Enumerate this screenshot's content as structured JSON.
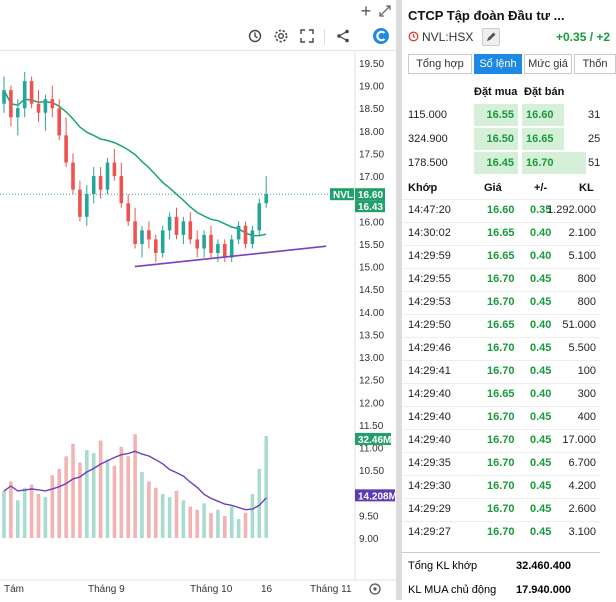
{
  "chart": {
    "price_ticks": [
      "19.50",
      "19.00",
      "18.50",
      "18.00",
      "17.50",
      "17.00",
      "16.50",
      "16.00",
      "15.50",
      "15.00",
      "14.50",
      "14.00",
      "13.50",
      "13.00",
      "12.50",
      "12.00",
      "11.50",
      "11.00",
      "10.50",
      "10.00",
      "9.50",
      "9.00"
    ],
    "x_labels": [
      "Tám",
      "Tháng 9",
      "Tháng 10",
      "16",
      "Tháng 11"
    ],
    "badges": {
      "symbol": "NVL",
      "last_price": "16.60",
      "ma_price": "16.43",
      "volume": "32.46M",
      "volume_ma": "14.208M"
    },
    "colors": {
      "up": "#26a69a",
      "down": "#ef5350",
      "ma": "#1aa37a",
      "trend": "#7b3fc4",
      "vol_ma": "#6a3fc0",
      "vol_up": "#a8dccf",
      "vol_down": "#f4b3b3",
      "badge_green": "#22a06b",
      "badge_purple": "#5c3bb5"
    }
  },
  "chart_data": {
    "type": "candlestick",
    "unit": "thousand VND",
    "x_axis_labels": [
      "Tám",
      "Tháng 9",
      "Tháng 10",
      "16",
      "Tháng 11"
    ],
    "price_range": [
      8.9,
      19.6
    ],
    "candles": [
      [
        18.6,
        19.2,
        18.4,
        18.9
      ],
      [
        18.9,
        19.0,
        18.1,
        18.3
      ],
      [
        18.3,
        18.7,
        17.9,
        18.5
      ],
      [
        18.5,
        19.3,
        18.3,
        19.1
      ],
      [
        19.1,
        19.2,
        18.5,
        18.6
      ],
      [
        18.6,
        18.9,
        18.2,
        18.4
      ],
      [
        18.4,
        18.8,
        18.0,
        18.7
      ],
      [
        18.7,
        19.0,
        18.3,
        18.5
      ],
      [
        18.5,
        18.7,
        17.8,
        17.9
      ],
      [
        17.9,
        18.3,
        17.2,
        17.3
      ],
      [
        17.3,
        17.5,
        16.6,
        16.7
      ],
      [
        16.7,
        16.9,
        16.0,
        16.1
      ],
      [
        16.1,
        16.8,
        15.9,
        16.6
      ],
      [
        16.6,
        17.2,
        16.4,
        17.0
      ],
      [
        17.0,
        17.2,
        16.5,
        16.7
      ],
      [
        16.7,
        17.4,
        16.6,
        17.3
      ],
      [
        17.3,
        17.6,
        16.9,
        17.0
      ],
      [
        17.0,
        17.3,
        16.3,
        16.4
      ],
      [
        16.4,
        16.6,
        15.9,
        16.0
      ],
      [
        16.0,
        16.3,
        15.4,
        15.5
      ],
      [
        15.5,
        15.9,
        15.2,
        15.8
      ],
      [
        15.8,
        16.0,
        15.4,
        15.6
      ],
      [
        15.6,
        15.7,
        15.1,
        15.3
      ],
      [
        15.3,
        15.9,
        15.2,
        15.8
      ],
      [
        15.8,
        16.2,
        15.6,
        16.1
      ],
      [
        16.1,
        16.3,
        15.6,
        15.7
      ],
      [
        15.7,
        16.1,
        15.5,
        16.0
      ],
      [
        16.0,
        16.2,
        15.5,
        15.6
      ],
      [
        15.6,
        15.8,
        15.2,
        15.4
      ],
      [
        15.4,
        15.8,
        15.2,
        15.7
      ],
      [
        15.7,
        15.9,
        15.2,
        15.3
      ],
      [
        15.3,
        15.6,
        15.1,
        15.5
      ],
      [
        15.5,
        15.6,
        15.1,
        15.2
      ],
      [
        15.2,
        15.7,
        15.1,
        15.6
      ],
      [
        15.6,
        16.0,
        15.5,
        15.9
      ],
      [
        15.9,
        16.0,
        15.4,
        15.5
      ],
      [
        15.5,
        15.9,
        15.4,
        15.8
      ],
      [
        15.8,
        16.5,
        15.7,
        16.4
      ],
      [
        16.4,
        17.0,
        16.3,
        16.6
      ]
    ],
    "volumes_million": [
      15,
      18,
      12,
      16,
      17,
      14,
      13,
      20,
      22,
      26,
      30,
      24,
      28,
      27,
      31,
      25,
      23,
      29,
      26,
      33,
      21,
      18,
      16,
      14,
      13,
      15,
      12,
      10,
      9,
      11,
      8,
      9,
      7,
      10,
      6,
      8,
      14,
      22,
      32.46
    ],
    "ma_volume_last": 14.208,
    "last_price": 16.6,
    "ma_last": 16.43,
    "trendline": [
      [
        21,
        15.0
      ],
      [
        38,
        15.45
      ]
    ]
  },
  "panel": {
    "company": "CTCP Tập đoàn Đầu tư ...",
    "ticker": "NVL:HSX",
    "change": "+0.35 / +2",
    "tabs": [
      "Tổng hợp",
      "Sổ lệnh",
      "Mức giá",
      "Thốn"
    ],
    "orderbook": {
      "headers": [
        "Đặt mua",
        "Đặt bán"
      ],
      "rows": [
        {
          "bid_vol": "115.000",
          "bid": "16.55",
          "ask": "16.60",
          "ask_vol": "31"
        },
        {
          "bid_vol": "324.900",
          "bid": "16.50",
          "ask": "16.65",
          "ask_vol": "25"
        },
        {
          "bid_vol": "178.500",
          "bid": "16.45",
          "ask": "16.70",
          "ask_vol": "51"
        }
      ]
    },
    "trades": {
      "headers": [
        "Khớp",
        "Giá",
        "+/-",
        "KL"
      ],
      "rows": [
        {
          "time": "14:47:20",
          "price": "16.60",
          "chg": "0.35",
          "vol": "1.292.000"
        },
        {
          "time": "14:30:02",
          "price": "16.65",
          "chg": "0.40",
          "vol": "2.100"
        },
        {
          "time": "14:29:59",
          "price": "16.65",
          "chg": "0.40",
          "vol": "5.100"
        },
        {
          "time": "14:29:55",
          "price": "16.70",
          "chg": "0.45",
          "vol": "800"
        },
        {
          "time": "14:29:53",
          "price": "16.70",
          "chg": "0.45",
          "vol": "800"
        },
        {
          "time": "14:29:50",
          "price": "16.65",
          "chg": "0.40",
          "vol": "51.000"
        },
        {
          "time": "14:29:46",
          "price": "16.70",
          "chg": "0.45",
          "vol": "5.500"
        },
        {
          "time": "14:29:41",
          "price": "16.70",
          "chg": "0.45",
          "vol": "100"
        },
        {
          "time": "14:29:40",
          "price": "16.65",
          "chg": "0.40",
          "vol": "300"
        },
        {
          "time": "14:29:40",
          "price": "16.70",
          "chg": "0.45",
          "vol": "400"
        },
        {
          "time": "14:29:40",
          "price": "16.70",
          "chg": "0.45",
          "vol": "17.000"
        },
        {
          "time": "14:29:35",
          "price": "16.70",
          "chg": "0.45",
          "vol": "6.700"
        },
        {
          "time": "14:29:30",
          "price": "16.70",
          "chg": "0.45",
          "vol": "4.200"
        },
        {
          "time": "14:29:29",
          "price": "16.70",
          "chg": "0.45",
          "vol": "2.600"
        },
        {
          "time": "14:29:27",
          "price": "16.70",
          "chg": "0.45",
          "vol": "3.100"
        }
      ]
    },
    "summary": [
      {
        "label": "Tổng KL khớp",
        "value": "32.460.400"
      },
      {
        "label": "KL MUA chủ động",
        "value": "17.940.000"
      }
    ]
  }
}
